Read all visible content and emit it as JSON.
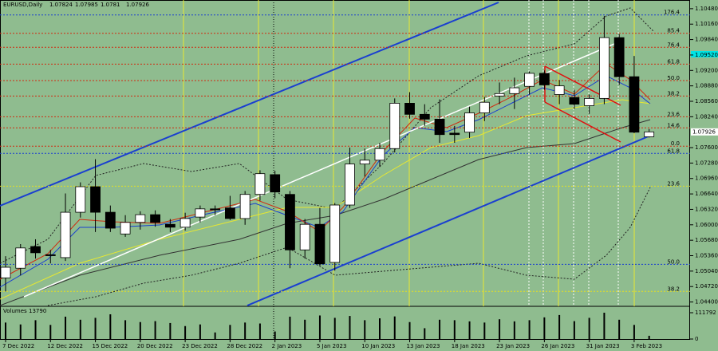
{
  "chart_data": {
    "type": "candlestick",
    "symbol": "EURUSD,Daily",
    "x": [
      "7 Dec 2022",
      null,
      null,
      "12 Dec 2022",
      null,
      null,
      "15 Dec 2022",
      null,
      null,
      "20 Dec 2022",
      null,
      null,
      "23 Dec 2022",
      null,
      null,
      "28 Dec 2022",
      null,
      null,
      "2 Jan 2023",
      null,
      null,
      "5 Jan 2023",
      null,
      null,
      "10 Jan 2023",
      null,
      null,
      "13 Jan 2023",
      null,
      null,
      "18 Jan 2023",
      null,
      null,
      "23 Jan 2023",
      null,
      null,
      "26 Jan 2023",
      null,
      null,
      "31 Jan 2023",
      null,
      null,
      "3 Feb 2023",
      null
    ],
    "open": [
      1.049,
      1.051,
      1.0555,
      1.0538,
      1.0532,
      1.0626,
      1.0679,
      1.0626,
      1.0581,
      1.0605,
      1.0621,
      1.0601,
      1.0595,
      1.0616,
      1.0633,
      1.0635,
      1.0613,
      1.0663,
      1.0704,
      1.0663,
      1.0548,
      1.0601,
      1.0522,
      1.0641,
      1.0726,
      1.0734,
      1.0758,
      1.0852,
      1.0829,
      1.0819,
      1.079,
      1.0792,
      1.0832,
      1.0867,
      1.0872,
      1.0887,
      1.0914,
      1.087,
      1.0864,
      1.0847,
      1.0862,
      1.0988,
      1.0907,
      1.07824
    ],
    "high": [
      1.0535,
      1.056,
      1.057,
      1.0548,
      1.0665,
      1.0688,
      1.0736,
      1.064,
      1.062,
      1.0628,
      1.063,
      1.0612,
      1.0625,
      1.064,
      1.064,
      1.066,
      1.067,
      1.0713,
      1.0712,
      1.067,
      1.0612,
      1.0635,
      1.0645,
      1.076,
      1.0758,
      1.077,
      1.0862,
      1.0875,
      1.085,
      1.086,
      1.0805,
      1.0845,
      1.0865,
      1.0895,
      1.0905,
      1.0918,
      1.092,
      1.09,
      1.088,
      1.087,
      1.1033,
      1.0995,
      1.095,
      1.07985
    ],
    "low": [
      1.0462,
      1.0495,
      1.053,
      1.052,
      1.0525,
      1.0615,
      1.0585,
      1.0585,
      1.0575,
      1.059,
      1.0596,
      1.0585,
      1.0588,
      1.0605,
      1.062,
      1.061,
      1.06,
      1.065,
      1.0655,
      1.051,
      1.053,
      1.0515,
      1.0505,
      1.0635,
      1.07,
      1.072,
      1.075,
      1.082,
      1.0805,
      1.077,
      1.077,
      1.078,
      1.0815,
      1.085,
      1.084,
      1.087,
      1.088,
      1.085,
      1.084,
      1.083,
      1.085,
      1.089,
      1.079,
      1.0781
    ],
    "close": [
      1.0512,
      1.0552,
      1.0542,
      1.0536,
      1.0626,
      1.0679,
      1.0626,
      1.0593,
      1.0605,
      1.0621,
      1.0605,
      1.0595,
      1.0613,
      1.0633,
      1.0631,
      1.0613,
      1.0663,
      1.0706,
      1.0668,
      1.0548,
      1.0601,
      1.0519,
      1.0641,
      1.0726,
      1.0734,
      1.0758,
      1.0852,
      1.0829,
      1.0819,
      1.0787,
      1.0787,
      1.0832,
      1.0854,
      1.0872,
      1.0884,
      1.0914,
      1.089,
      1.0888,
      1.085,
      1.0862,
      1.0988,
      1.0907,
      1.0792,
      1.07926
    ],
    "ylim": [
      1.0431,
      1.1066
    ],
    "yticks": [
      {
        "value": 1.1048,
        "label": "1.10480"
      },
      {
        "value": 1.1016,
        "label": "1.10160"
      },
      {
        "value": 1.0984,
        "label": "1.09840"
      },
      {
        "value": 1.0952,
        "label": "1.09520"
      },
      {
        "value": 1.092,
        "label": "1.09200"
      },
      {
        "value": 1.0888,
        "label": "1.08880"
      },
      {
        "value": 1.0856,
        "label": "1.08560"
      },
      {
        "value": 1.0824,
        "label": "1.08240"
      },
      {
        "value": 1.076,
        "label": "1.07600"
      },
      {
        "value": 1.0728,
        "label": "1.07280"
      },
      {
        "value": 1.0696,
        "label": "1.06960"
      },
      {
        "value": 1.0664,
        "label": "1.06640"
      },
      {
        "value": 1.0632,
        "label": "1.06320"
      },
      {
        "value": 1.06,
        "label": "1.06000"
      },
      {
        "value": 1.0568,
        "label": "1.05680"
      },
      {
        "value": 1.0536,
        "label": "1.05360"
      },
      {
        "value": 1.0504,
        "label": "1.05040"
      },
      {
        "value": 1.0472,
        "label": "1.04720"
      },
      {
        "value": 1.044,
        "label": "1.04400"
      }
    ],
    "fib_levels": [
      {
        "label": "176.4",
        "price": 1.1035,
        "color": "#1a3fd0"
      },
      {
        "label": "85.4",
        "price": 1.0997,
        "color": "#d02a10"
      },
      {
        "label": "76.4",
        "price": 1.0968,
        "color": "#d02a10"
      },
      {
        "label": "61.8",
        "price": 1.0933,
        "color": "#d02a10"
      },
      {
        "label": "50.0",
        "price": 1.0899,
        "color": "#d02a10"
      },
      {
        "label": "38.2",
        "price": 1.0867,
        "color": "#d02a10"
      },
      {
        "label": "23.6",
        "price": 1.0824,
        "color": "#d02a10"
      },
      {
        "label": "14.6",
        "price": 1.0801,
        "color": "#d02a10"
      },
      {
        "label": "0.0",
        "price": 1.0763,
        "color": "#d02a10"
      },
      {
        "label": "61.8",
        "price": 1.0748,
        "color": "#1a3fd0"
      },
      {
        "label": "23.6",
        "price": 1.068,
        "color": "#e6e020"
      },
      {
        "label": "50.0",
        "price": 1.0518,
        "color": "#1a3fd0"
      },
      {
        "label": "38.2",
        "price": 1.0462,
        "color": "#e6e020"
      }
    ],
    "volume_label": "Volumes",
    "volumes": [
      70000,
      62000,
      80000,
      60000,
      95000,
      82000,
      90000,
      105000,
      80000,
      72000,
      76000,
      68000,
      55000,
      62000,
      28000,
      60000,
      70000,
      66000,
      32000,
      95000,
      82000,
      100000,
      90000,
      98000,
      80000,
      88000,
      96000,
      72000,
      46000,
      82000,
      80000,
      75000,
      70000,
      84000,
      75000,
      80000,
      92000,
      102000,
      76000,
      90000,
      111792,
      82000,
      60000,
      13790
    ],
    "volume_ylim": [
      0,
      111792
    ],
    "volume_yticks": [
      111792,
      0
    ]
  }
}
